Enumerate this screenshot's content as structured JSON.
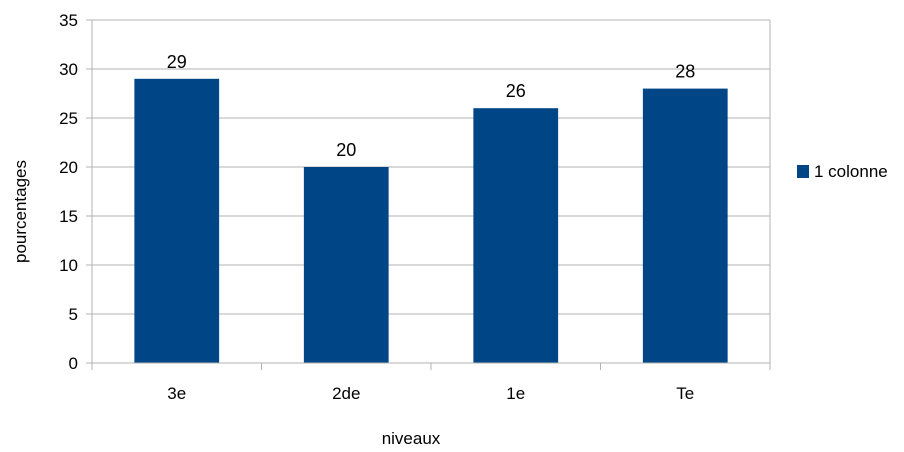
{
  "chart_data": {
    "type": "bar",
    "categories": [
      "3e",
      "2de",
      "1e",
      "Te"
    ],
    "series": [
      {
        "name": "1 colonne",
        "values": [
          29,
          20,
          26,
          28
        ],
        "color": "#004586"
      }
    ],
    "xlabel": "niveaux",
    "ylabel": "pourcentages",
    "ylim": [
      0,
      35
    ],
    "yticks": [
      0,
      5,
      10,
      15,
      20,
      25,
      30,
      35
    ],
    "grid": true,
    "grid_color": "#b3b3b3",
    "legend_position": "right",
    "data_labels": true
  }
}
